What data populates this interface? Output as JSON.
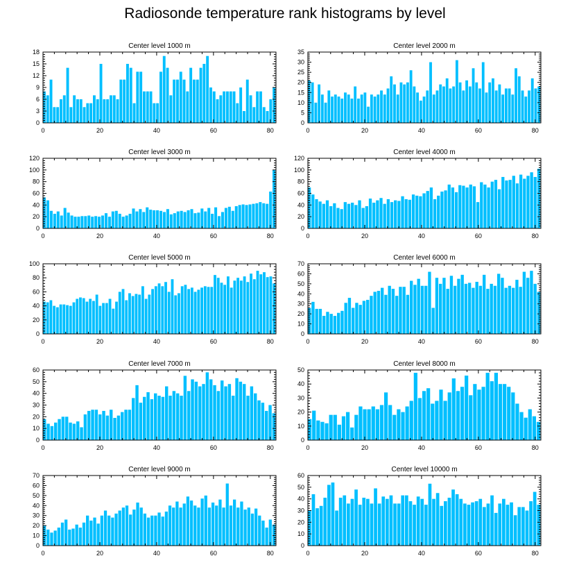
{
  "title": "Radiosonde temperature rank histograms by level",
  "colors": {
    "bar": "#00bfff",
    "axis": "#000000",
    "background": "#ffffff"
  },
  "chart_data": [
    {
      "type": "bar",
      "title": "Center level 1000 m",
      "ylim": [
        0,
        18
      ],
      "yticks": [
        0,
        3,
        6,
        9,
        12,
        15,
        18
      ],
      "xlim": [
        0,
        82
      ],
      "xticks": [
        0,
        20,
        40,
        60,
        80
      ],
      "values": [
        8,
        7,
        11,
        4,
        4,
        6,
        7,
        14,
        4,
        7,
        6,
        6,
        4,
        5,
        5,
        7,
        6,
        15,
        6,
        6,
        7,
        7,
        6,
        11,
        11,
        15,
        14,
        5,
        13,
        13,
        8,
        8,
        8,
        5,
        5,
        13,
        17,
        14,
        7,
        11,
        11,
        13,
        11,
        8,
        14,
        11,
        11,
        14,
        15,
        17,
        9,
        8,
        6,
        7,
        8,
        8,
        8,
        8,
        5,
        9,
        3,
        11,
        7,
        4,
        8,
        8,
        4,
        3,
        6,
        9
      ]
    },
    {
      "type": "bar",
      "title": "Center level 2000 m",
      "ylim": [
        0,
        35
      ],
      "yticks": [
        0,
        5,
        10,
        15,
        20,
        25,
        30,
        35
      ],
      "xlim": [
        0,
        82
      ],
      "xticks": [
        0,
        20,
        40,
        60,
        80
      ],
      "values": [
        21,
        20,
        10,
        19,
        14,
        10,
        16,
        13,
        14,
        13,
        12,
        15,
        14,
        12,
        18,
        12,
        14,
        15,
        8,
        14,
        13,
        14,
        16,
        14,
        17,
        23,
        19,
        14,
        20,
        19,
        20,
        26,
        18,
        15,
        11,
        13,
        16,
        30,
        14,
        16,
        19,
        18,
        22,
        17,
        18,
        31,
        20,
        16,
        21,
        18,
        27,
        20,
        17,
        30,
        15,
        20,
        22,
        16,
        19,
        14,
        17,
        17,
        14,
        27,
        23,
        16,
        13,
        16,
        22,
        17,
        18
      ]
    },
    {
      "type": "bar",
      "title": "Center level 3000 m",
      "ylim": [
        0,
        120
      ],
      "yticks": [
        0,
        20,
        40,
        60,
        80,
        100,
        120
      ],
      "xlim": [
        0,
        82
      ],
      "xticks": [
        0,
        20,
        40,
        60,
        80
      ],
      "values": [
        53,
        48,
        30,
        25,
        29,
        22,
        35,
        27,
        22,
        20,
        20,
        21,
        21,
        22,
        20,
        21,
        20,
        22,
        26,
        20,
        29,
        30,
        25,
        20,
        22,
        25,
        34,
        29,
        33,
        28,
        36,
        32,
        31,
        31,
        30,
        28,
        33,
        24,
        26,
        29,
        30,
        28,
        31,
        33,
        26,
        27,
        34,
        29,
        35,
        25,
        36,
        21,
        28,
        35,
        37,
        30,
        38,
        40,
        41,
        40,
        41,
        42,
        43,
        45,
        43,
        42,
        63,
        100
      ]
    },
    {
      "type": "bar",
      "title": "Center level 4000 m",
      "ylim": [
        0,
        120
      ],
      "yticks": [
        0,
        20,
        40,
        60,
        80,
        100,
        120
      ],
      "xlim": [
        0,
        82
      ],
      "xticks": [
        0,
        20,
        40,
        60,
        80
      ],
      "values": [
        70,
        58,
        50,
        46,
        42,
        48,
        38,
        43,
        35,
        33,
        45,
        42,
        44,
        40,
        48,
        35,
        38,
        51,
        44,
        48,
        52,
        42,
        50,
        45,
        48,
        47,
        55,
        50,
        49,
        58,
        56,
        55,
        60,
        64,
        70,
        50,
        56,
        63,
        65,
        75,
        70,
        62,
        74,
        73,
        70,
        75,
        72,
        45,
        79,
        75,
        70,
        80,
        83,
        67,
        88,
        82,
        83,
        90,
        77,
        92,
        85,
        90,
        96,
        88,
        102
      ]
    },
    {
      "type": "bar",
      "title": "Center level 5000 m",
      "ylim": [
        0,
        100
      ],
      "yticks": [
        0,
        20,
        40,
        60,
        80,
        100
      ],
      "xlim": [
        0,
        82
      ],
      "xticks": [
        0,
        20,
        40,
        60,
        80
      ],
      "values": [
        46,
        45,
        48,
        40,
        38,
        42,
        42,
        41,
        40,
        45,
        50,
        52,
        51,
        46,
        50,
        47,
        56,
        40,
        44,
        44,
        50,
        36,
        46,
        60,
        64,
        48,
        58,
        54,
        57,
        56,
        68,
        50,
        56,
        64,
        68,
        72,
        68,
        74,
        60,
        78,
        55,
        58,
        68,
        70,
        64,
        66,
        60,
        63,
        66,
        68,
        67,
        67,
        84,
        80,
        73,
        70,
        82,
        66,
        76,
        80,
        76,
        82,
        74,
        86,
        78,
        90,
        85,
        88,
        81,
        82,
        72
      ]
    },
    {
      "type": "bar",
      "title": "Center level 6000 m",
      "ylim": [
        0,
        70
      ],
      "yticks": [
        0,
        10,
        20,
        30,
        40,
        50,
        60,
        70
      ],
      "xlim": [
        0,
        82
      ],
      "xticks": [
        0,
        20,
        40,
        60,
        80
      ],
      "values": [
        26,
        32,
        25,
        25,
        18,
        22,
        20,
        18,
        21,
        23,
        31,
        36,
        26,
        31,
        29,
        33,
        34,
        38,
        42,
        43,
        46,
        39,
        48,
        45,
        38,
        47,
        47,
        39,
        53,
        49,
        55,
        48,
        48,
        62,
        26,
        56,
        50,
        56,
        45,
        58,
        48,
        55,
        59,
        50,
        51,
        46,
        52,
        48,
        59,
        45,
        50,
        48,
        60,
        56,
        46,
        48,
        46,
        54,
        47,
        62,
        56,
        63,
        50,
        42
      ]
    },
    {
      "type": "bar",
      "title": "Center level 7000 m",
      "ylim": [
        0,
        60
      ],
      "yticks": [
        0,
        10,
        20,
        30,
        40,
        50,
        60
      ],
      "xlim": [
        0,
        82
      ],
      "xticks": [
        0,
        20,
        40,
        60,
        80
      ],
      "values": [
        18,
        14,
        12,
        15,
        18,
        20,
        20,
        15,
        14,
        16,
        11,
        22,
        25,
        26,
        26,
        22,
        25,
        21,
        26,
        19,
        21,
        24,
        26,
        26,
        36,
        47,
        32,
        37,
        41,
        35,
        40,
        38,
        37,
        46,
        38,
        42,
        40,
        38,
        55,
        42,
        52,
        50,
        46,
        48,
        58,
        52,
        47,
        42,
        51,
        46,
        48,
        38,
        53,
        50,
        48,
        38,
        46,
        40,
        34,
        32,
        25,
        30,
        23
      ]
    },
    {
      "type": "bar",
      "title": "Center level 8000 m",
      "ylim": [
        0,
        50
      ],
      "yticks": [
        0,
        10,
        20,
        30,
        40,
        50
      ],
      "xlim": [
        0,
        82
      ],
      "xticks": [
        0,
        20,
        40,
        60,
        80
      ],
      "values": [
        15,
        21,
        14,
        13,
        12,
        18,
        18,
        11,
        17,
        20,
        9,
        18,
        24,
        22,
        22,
        24,
        22,
        25,
        34,
        25,
        18,
        22,
        20,
        24,
        28,
        48,
        30,
        35,
        37,
        26,
        28,
        36,
        28,
        34,
        44,
        35,
        38,
        46,
        32,
        40,
        36,
        38,
        48,
        42,
        48,
        40,
        40,
        38,
        34,
        26,
        20,
        16,
        22,
        17,
        13
      ]
    },
    {
      "type": "bar",
      "title": "Center level 9000 m",
      "ylim": [
        0,
        70
      ],
      "yticks": [
        0,
        10,
        20,
        30,
        40,
        50,
        60,
        70
      ],
      "xlim": [
        0,
        82
      ],
      "xticks": [
        0,
        20,
        40,
        60,
        80
      ],
      "values": [
        20,
        16,
        13,
        15,
        18,
        23,
        26,
        16,
        17,
        21,
        18,
        23,
        30,
        25,
        28,
        22,
        30,
        35,
        30,
        28,
        32,
        35,
        38,
        40,
        31,
        36,
        43,
        38,
        32,
        28,
        30,
        30,
        33,
        29,
        34,
        40,
        38,
        44,
        38,
        42,
        49,
        45,
        40,
        38,
        47,
        50,
        38,
        43,
        40,
        46,
        38,
        62,
        40,
        46,
        38,
        44,
        36,
        38,
        32,
        37,
        30,
        25,
        18,
        26,
        21
      ]
    },
    {
      "type": "bar",
      "title": "Center level 10000 m",
      "ylim": [
        0,
        60
      ],
      "yticks": [
        0,
        10,
        20,
        30,
        40,
        50,
        60
      ],
      "xlim": [
        0,
        82
      ],
      "xticks": [
        0,
        20,
        40,
        60,
        80
      ],
      "values": [
        30,
        44,
        32,
        34,
        41,
        52,
        54,
        30,
        41,
        43,
        36,
        40,
        48,
        35,
        41,
        40,
        36,
        49,
        36,
        42,
        40,
        43,
        36,
        36,
        43,
        43,
        38,
        35,
        42,
        40,
        35,
        53,
        40,
        45,
        34,
        38,
        41,
        48,
        44,
        40,
        36,
        35,
        37,
        38,
        40,
        33,
        36,
        43,
        28,
        36,
        40,
        35,
        37,
        26,
        33,
        33,
        30,
        38,
        46,
        35
      ]
    }
  ]
}
